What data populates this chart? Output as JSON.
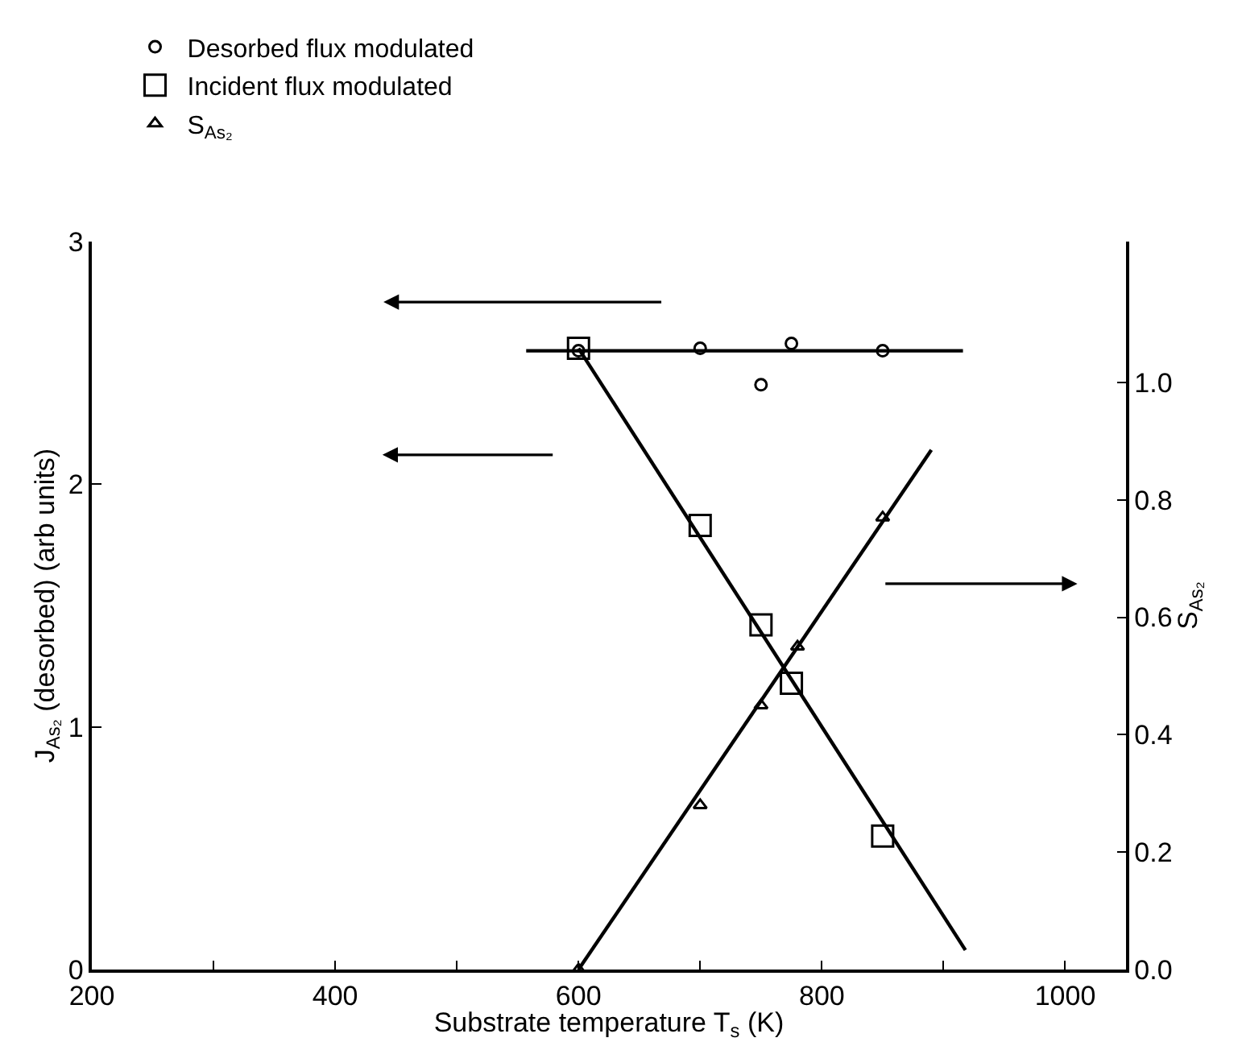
{
  "chart_data": {
    "type": "scatter",
    "xlabel": "Substrate temperature T$_{s}$ (K)",
    "ylabel": "J$_{As₂}$ (desorbed) (arb units)",
    "y2label": "S$_{As₂}$",
    "xlim": [
      200,
      1050
    ],
    "xticks": [
      200,
      {
        "value": 300,
        "label": null
      },
      400,
      {
        "value": 500,
        "label": null
      },
      600,
      {
        "value": 700,
        "label": null
      },
      800,
      {
        "value": 900,
        "label": null
      },
      1000
    ],
    "ylim": [
      0,
      3
    ],
    "yticks": [
      0,
      1,
      2,
      3
    ],
    "y2lim": [
      0,
      1.24
    ],
    "y2ticks": [
      {
        "value": 0,
        "label": "0.0"
      },
      {
        "value": 0.2,
        "label": "0.2"
      },
      {
        "value": 0.4,
        "label": "0.4"
      },
      {
        "value": 0.6,
        "label": "0.6"
      },
      {
        "value": 0.8,
        "label": "0.8"
      },
      {
        "value": 1.0,
        "label": "1.0"
      }
    ],
    "grid": false,
    "legend": "top left",
    "series": [
      {
        "name": "Desorbed flux modulated",
        "marker": "circle",
        "color": "#000000",
        "x": [
          600,
          700,
          750,
          775,
          850
        ],
        "values": [
          2.55,
          2.56,
          2.41,
          2.58,
          2.55
        ]
      },
      {
        "name": "Incident flux modulated",
        "marker": "square",
        "color": "#000000",
        "x": [
          600,
          700,
          750,
          775,
          850
        ],
        "values": [
          2.56,
          1.83,
          1.42,
          1.18,
          0.55
        ]
      },
      {
        "name": "S$_{As₂}$",
        "marker": "triangle",
        "axis": "y2",
        "color": "#000000",
        "x": [
          600,
          700,
          750,
          780,
          850
        ],
        "values": [
          0.0,
          0.28,
          0.45,
          0.55,
          0.77
        ]
      },
      {
        "type": "line",
        "color": "#000000",
        "x": [
          557,
          916
        ],
        "values": [
          2.55,
          2.55
        ]
      },
      {
        "type": "line",
        "color": "#000000",
        "x": [
          600,
          918
        ],
        "values": [
          2.56,
          0.08
        ]
      },
      {
        "type": "line",
        "axis": "y2",
        "color": "#000000",
        "x": [
          600,
          890
        ],
        "values": [
          0.0,
          0.885
        ]
      }
    ]
  }
}
